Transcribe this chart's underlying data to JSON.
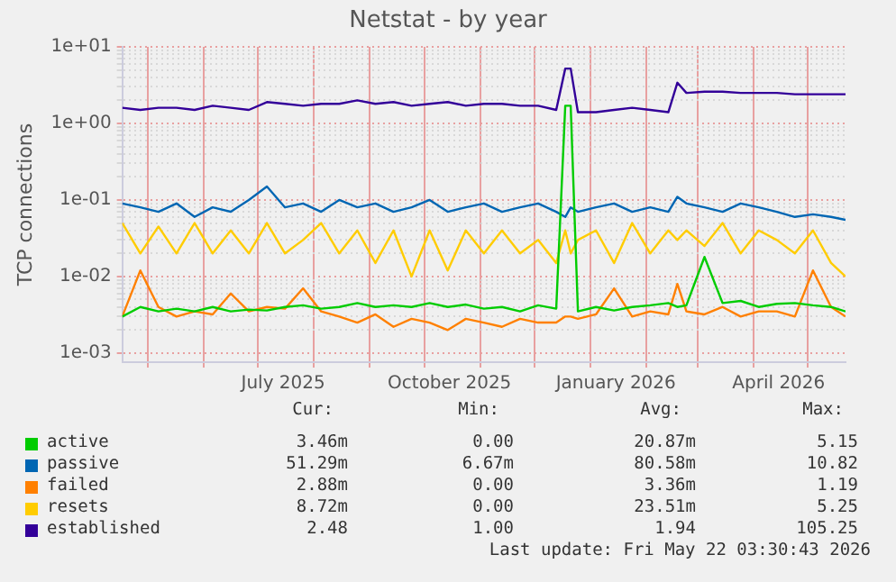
{
  "chart_data": {
    "type": "line",
    "title": "Netstat - by year",
    "ylabel": "TCP connections",
    "log": "y",
    "grid": true,
    "legend": "bottom",
    "x": [
      "2025-04-17",
      "2025-04-27",
      "2025-05-07",
      "2025-05-17",
      "2025-05-27",
      "2025-06-06",
      "2025-06-16",
      "2025-06-26",
      "2025-07-06",
      "2025-07-16",
      "2025-07-26",
      "2025-08-05",
      "2025-08-15",
      "2025-08-25",
      "2025-09-04",
      "2025-09-14",
      "2025-09-24",
      "2025-10-04",
      "2025-10-14",
      "2025-10-24",
      "2025-11-03",
      "2025-11-13",
      "2025-11-23",
      "2025-12-03",
      "2025-12-13",
      "2025-12-18",
      "2025-12-21",
      "2025-12-25",
      "2026-01-04",
      "2026-01-14",
      "2026-01-24",
      "2026-02-03",
      "2026-02-13",
      "2026-02-18",
      "2026-02-23",
      "2026-03-05",
      "2026-03-15",
      "2026-03-25",
      "2026-04-04",
      "2026-04-14",
      "2026-04-24",
      "2026-05-04",
      "2026-05-14",
      "2026-05-22"
    ],
    "xlim": [
      "2025-04-17",
      "2026-05-22"
    ],
    "xticks": [
      {
        "value": "2025-05-01",
        "label": null
      },
      {
        "value": "2025-06-01",
        "label": null
      },
      {
        "value": "2025-07-01",
        "label": null
      },
      {
        "value": "2025-07-15",
        "label": "July 2025"
      },
      {
        "value": "2025-08-01",
        "label": null
      },
      {
        "value": "2025-09-01",
        "label": null
      },
      {
        "value": "2025-10-01",
        "label": null
      },
      {
        "value": "2025-10-15",
        "label": "October 2025"
      },
      {
        "value": "2025-11-01",
        "label": null
      },
      {
        "value": "2025-12-01",
        "label": null
      },
      {
        "value": "2026-01-01",
        "label": null
      },
      {
        "value": "2026-01-15",
        "label": "January 2026"
      },
      {
        "value": "2026-02-01",
        "label": null
      },
      {
        "value": "2026-03-01",
        "label": null
      },
      {
        "value": "2026-04-01",
        "label": null
      },
      {
        "value": "2026-04-15",
        "label": "April 2026"
      },
      {
        "value": "2026-05-01",
        "label": null
      }
    ],
    "ylim": [
      0.00076,
      10
    ],
    "yticks": [
      {
        "value": 0.001,
        "label": "1e-03"
      },
      {
        "value": 0.002,
        "label": null
      },
      {
        "value": 0.003,
        "label": null
      },
      {
        "value": 0.004,
        "label": null
      },
      {
        "value": 0.005,
        "label": null
      },
      {
        "value": 0.006,
        "label": null
      },
      {
        "value": 0.007,
        "label": null
      },
      {
        "value": 0.008,
        "label": null
      },
      {
        "value": 0.009,
        "label": null
      },
      {
        "value": 0.01,
        "label": "1e-02"
      },
      {
        "value": 0.02,
        "label": null
      },
      {
        "value": 0.03,
        "label": null
      },
      {
        "value": 0.04,
        "label": null
      },
      {
        "value": 0.05,
        "label": null
      },
      {
        "value": 0.06,
        "label": null
      },
      {
        "value": 0.07,
        "label": null
      },
      {
        "value": 0.08,
        "label": null
      },
      {
        "value": 0.09,
        "label": null
      },
      {
        "value": 0.1,
        "label": "1e-01"
      },
      {
        "value": 0.2,
        "label": null
      },
      {
        "value": 0.3,
        "label": null
      },
      {
        "value": 0.4,
        "label": null
      },
      {
        "value": 0.5,
        "label": null
      },
      {
        "value": 0.6,
        "label": null
      },
      {
        "value": 0.7,
        "label": null
      },
      {
        "value": 0.8,
        "label": null
      },
      {
        "value": 0.9,
        "label": null
      },
      {
        "value": 1,
        "label": "1e+00"
      },
      {
        "value": 2,
        "label": null
      },
      {
        "value": 3,
        "label": null
      },
      {
        "value": 4,
        "label": null
      },
      {
        "value": 5,
        "label": null
      },
      {
        "value": 6,
        "label": null
      },
      {
        "value": 7,
        "label": null
      },
      {
        "value": 8,
        "label": null
      },
      {
        "value": 9,
        "label": null
      },
      {
        "value": 10,
        "label": "1e+01"
      }
    ],
    "series": [
      {
        "name": "active",
        "color": "#00cc00",
        "values": [
          0.003,
          0.004,
          0.0035,
          0.0038,
          0.0035,
          0.004,
          0.0035,
          0.0037,
          0.0036,
          0.004,
          0.0042,
          0.0038,
          0.004,
          0.0045,
          0.004,
          0.0042,
          0.004,
          0.0045,
          0.004,
          0.0043,
          0.0038,
          0.004,
          0.0035,
          0.0042,
          0.0038,
          1.7,
          1.7,
          0.0035,
          0.004,
          0.0036,
          0.004,
          0.0042,
          0.0045,
          0.004,
          0.0042,
          0.018,
          0.0045,
          0.0048,
          0.004,
          0.0044,
          0.0045,
          0.0042,
          0.004,
          0.0035
        ]
      },
      {
        "name": "passive",
        "color": "#0066b3",
        "values": [
          0.09,
          0.08,
          0.07,
          0.09,
          0.06,
          0.08,
          0.07,
          0.1,
          0.15,
          0.08,
          0.09,
          0.07,
          0.1,
          0.08,
          0.09,
          0.07,
          0.08,
          0.1,
          0.07,
          0.08,
          0.09,
          0.07,
          0.08,
          0.09,
          0.07,
          0.06,
          0.08,
          0.07,
          0.08,
          0.09,
          0.07,
          0.08,
          0.07,
          0.11,
          0.09,
          0.08,
          0.07,
          0.09,
          0.08,
          0.07,
          0.06,
          0.065,
          0.06,
          0.055
        ]
      },
      {
        "name": "failed",
        "color": "#ff8000",
        "values": [
          0.003,
          0.012,
          0.004,
          0.003,
          0.0035,
          0.0032,
          0.006,
          0.0035,
          0.004,
          0.0038,
          0.007,
          0.0035,
          0.003,
          0.0025,
          0.0032,
          0.0022,
          0.0028,
          0.0025,
          0.002,
          0.0028,
          0.0025,
          0.0022,
          0.0028,
          0.0025,
          0.0025,
          0.003,
          0.003,
          0.0028,
          0.0032,
          0.007,
          0.003,
          0.0035,
          0.0032,
          0.008,
          0.0035,
          0.0032,
          0.004,
          0.003,
          0.0035,
          0.0035,
          0.003,
          0.012,
          0.004,
          0.003
        ]
      },
      {
        "name": "resets",
        "color": "#ffcc00",
        "values": [
          0.05,
          0.02,
          0.045,
          0.02,
          0.05,
          0.02,
          0.04,
          0.02,
          0.05,
          0.02,
          0.03,
          0.05,
          0.02,
          0.04,
          0.015,
          0.04,
          0.01,
          0.04,
          0.012,
          0.04,
          0.02,
          0.04,
          0.02,
          0.03,
          0.015,
          0.04,
          0.02,
          0.03,
          0.04,
          0.015,
          0.05,
          0.02,
          0.04,
          0.03,
          0.04,
          0.025,
          0.05,
          0.02,
          0.04,
          0.03,
          0.02,
          0.04,
          0.015,
          0.01
        ]
      },
      {
        "name": "established",
        "color": "#330099",
        "values": [
          1.6,
          1.5,
          1.6,
          1.6,
          1.5,
          1.7,
          1.6,
          1.5,
          1.9,
          1.8,
          1.7,
          1.8,
          1.8,
          2.0,
          1.8,
          1.9,
          1.7,
          1.8,
          1.9,
          1.7,
          1.8,
          1.8,
          1.7,
          1.7,
          1.5,
          5.2,
          5.2,
          1.4,
          1.4,
          1.5,
          1.6,
          1.5,
          1.4,
          3.4,
          2.5,
          2.6,
          2.6,
          2.5,
          2.5,
          2.5,
          2.4,
          2.4,
          2.4,
          2.4
        ]
      }
    ],
    "annotations": [
      "Cur:",
      "Min:",
      "Avg:",
      "Max:",
      "3.46m",
      "0.00",
      "20.87m",
      "5.15",
      "51.29m",
      "6.67m",
      "80.58m",
      "10.82",
      "2.88m",
      "0.00",
      "3.36m",
      "1.19",
      "8.72m",
      "0.00",
      "23.51m",
      "5.25",
      "2.48",
      "1.00",
      "1.94",
      "105.25",
      "Last update: Fri May 22 03:30:43 2026"
    ]
  }
}
